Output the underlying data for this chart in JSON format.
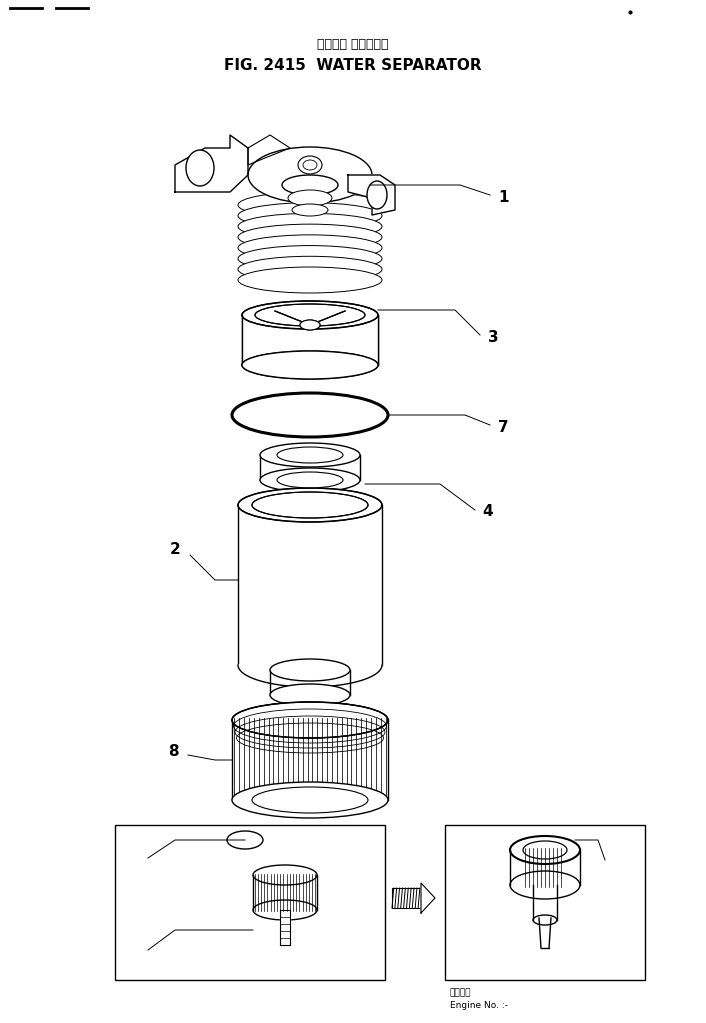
{
  "title_japanese": "ウォータ セパレータ",
  "title_english": "FIG. 2415  WATER SEPARATOR",
  "bg_color": "#ffffff",
  "line_color": "#000000",
  "fig_width": 7.06,
  "fig_height": 10.23,
  "dpi": 100,
  "engine_note": "適用号機\nEngine No. :-"
}
